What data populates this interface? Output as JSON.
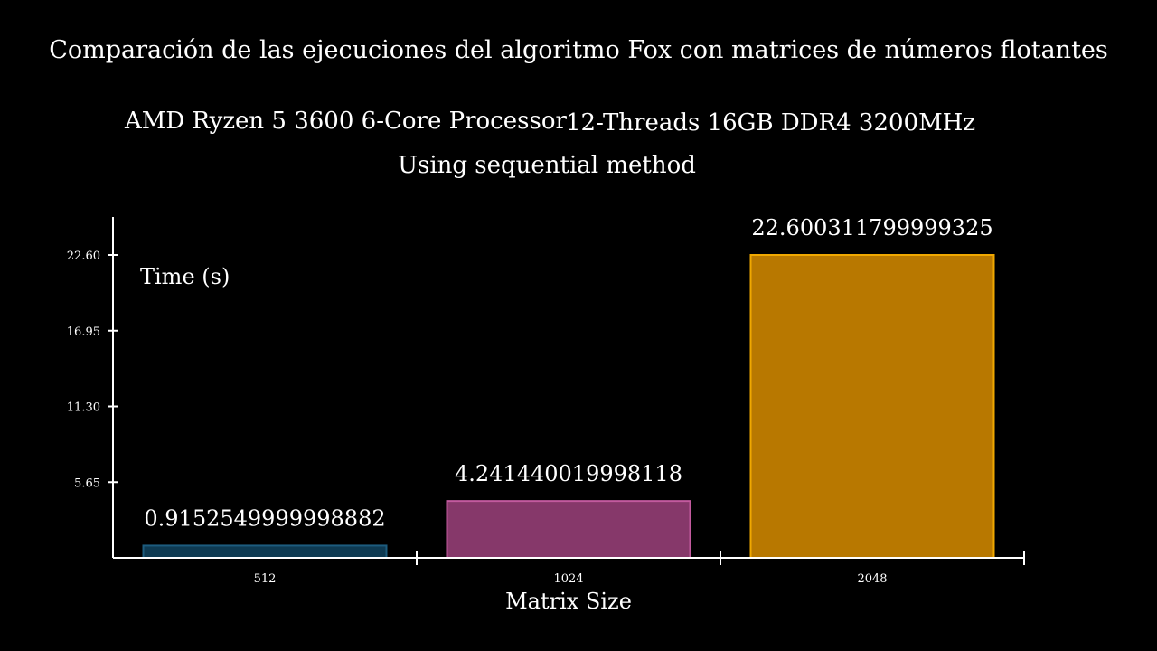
{
  "title": "Comparación de las ejecuciones del algoritmo Fox con matrices de números flotantes",
  "subtitle": {
    "cpu": "AMD Ryzen 5 3600 6-Core Processor",
    "memory": "12-Threads 16GB DDR4 3200MHz",
    "method": "Using sequential method"
  },
  "chart_data": {
    "type": "bar",
    "categories": [
      "512",
      "1024",
      "2048"
    ],
    "values": [
      0.9152549999998882,
      4.241440019998118,
      22.600311799999325
    ],
    "value_labels": [
      "0.9152549999998882",
      "4.241440019998118",
      "22.600311799999325"
    ],
    "colors": {
      "fill": [
        "#0e3a52",
        "#86386a",
        "#b87800"
      ],
      "stroke": [
        "#1d5c7e",
        "#c25a9e",
        "#f0a800"
      ]
    },
    "axis_color": "#ffffff",
    "xlabel": "Matrix Size",
    "ylabel": "Time (s)",
    "yticks": [
      "5.65",
      "11.30",
      "16.95",
      "22.60"
    ],
    "ylim": [
      0,
      22.600311799999325
    ],
    "grid": false,
    "legend": false
  }
}
